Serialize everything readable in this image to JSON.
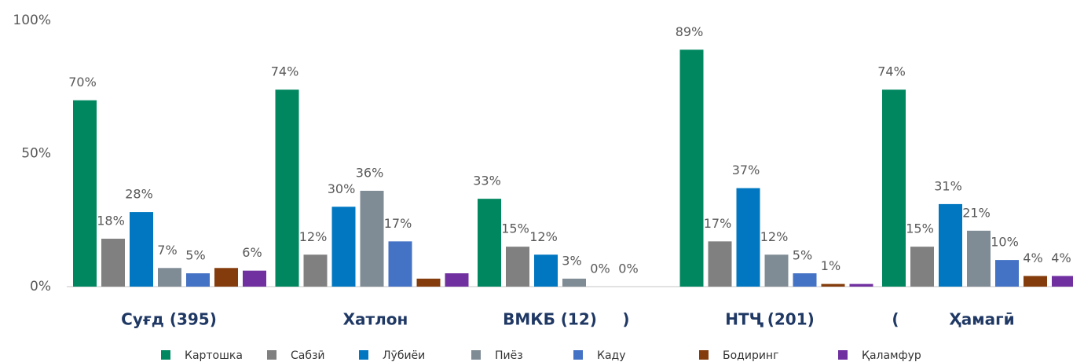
{
  "chart_data": {
    "type": "bar",
    "categories": [
      "Суғд (395)",
      "Хатлон",
      "ВМКБ (12)",
      "НТҶ (201)",
      "Ҳамагӣ"
    ],
    "annotations": [
      ")",
      "("
    ],
    "series": [
      {
        "name": "Картошка",
        "color": "#00875f",
        "values": [
          70,
          74,
          33,
          89,
          74
        ],
        "value_labels": [
          "70%",
          "74%",
          "33%",
          "89%",
          "74%"
        ]
      },
      {
        "name": "Сабзӣ",
        "color": "#808080",
        "values": [
          18,
          12,
          15,
          17,
          15
        ],
        "value_labels": [
          "18%",
          "12%",
          "15%",
          "17%",
          "15%"
        ]
      },
      {
        "name": "Лӯбиёи",
        "color": "#0077c0",
        "values": [
          28,
          30,
          12,
          37,
          31
        ],
        "value_labels": [
          "28%",
          "30%",
          "12%",
          "37%",
          "31%"
        ]
      },
      {
        "name": "Пиёз",
        "color": "#7f8c95",
        "values": [
          7,
          36,
          3,
          12,
          21
        ],
        "value_labels": [
          "7%",
          "36%",
          "3%",
          "12%",
          "21%"
        ]
      },
      {
        "name": "Каду",
        "color": "#4472c4",
        "values": [
          5,
          17,
          0,
          5,
          10
        ],
        "value_labels": [
          "5%",
          "17%",
          "0%",
          "5%",
          "10%"
        ]
      },
      {
        "name": "Бодиринг",
        "color": "#843c0c",
        "values": [
          7,
          3,
          0,
          1,
          4
        ],
        "value_labels": [
          null,
          null,
          "0%",
          "1%",
          "4%"
        ]
      },
      {
        "name": "Қаламфур",
        "color": "#7030a0",
        "values": [
          6,
          5,
          0,
          1,
          4
        ],
        "value_labels": [
          "6%",
          null,
          null,
          null,
          "4%"
        ]
      }
    ],
    "ylim": [
      0,
      100
    ],
    "yticks": [
      {
        "value": 0,
        "label": "0%"
      },
      {
        "value": 50,
        "label": "50%"
      },
      {
        "value": 100,
        "label": "100%"
      }
    ],
    "grid": false
  }
}
